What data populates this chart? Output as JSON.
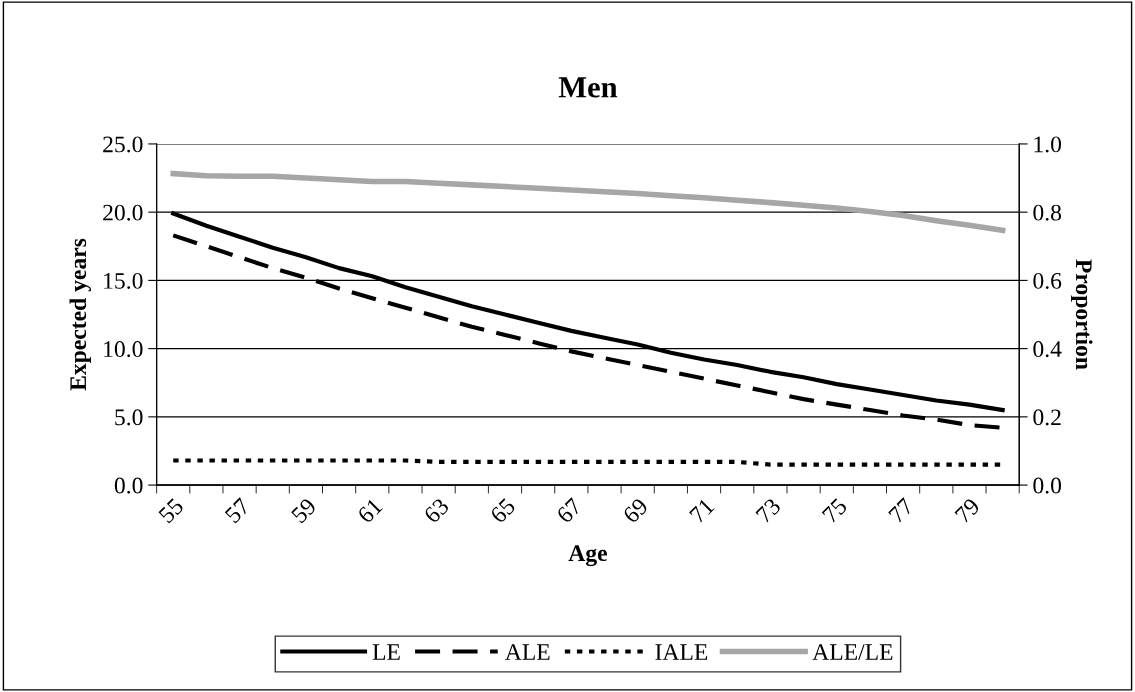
{
  "chart_data": {
    "type": "line",
    "title": "Men",
    "xlabel": "Age",
    "ylabel": "Expected years",
    "y2label": "Proportion",
    "categories": [
      "55",
      null,
      "57",
      null,
      "59",
      null,
      "61",
      null,
      "63",
      null,
      "65",
      null,
      "67",
      null,
      "69",
      null,
      "71",
      null,
      "73",
      null,
      "75",
      null,
      "77",
      null,
      "79",
      null
    ],
    "series": [
      {
        "name": "LE",
        "color": "#000000",
        "line_style": "solid",
        "values": [
          19.9,
          19.0,
          18.2,
          17.4,
          16.7,
          15.9,
          15.3,
          14.5,
          13.8,
          13.1,
          12.5,
          11.9,
          11.3,
          10.8,
          10.3,
          9.7,
          9.2,
          8.8,
          8.3,
          7.9,
          7.4,
          7.0,
          6.6,
          6.2,
          5.9,
          5.5
        ]
      },
      {
        "name": "ALE",
        "color": "#000000",
        "line_style": "dashed",
        "values": [
          18.3,
          17.5,
          16.7,
          15.9,
          15.2,
          14.4,
          13.7,
          13.0,
          12.3,
          11.6,
          11.0,
          10.4,
          9.8,
          9.3,
          8.8,
          8.3,
          7.8,
          7.3,
          6.8,
          6.3,
          5.9,
          5.5,
          5.1,
          4.8,
          4.4,
          4.2
        ]
      },
      {
        "name": "IALE",
        "color": "#000000",
        "line_style": "dotted",
        "values": [
          1.8,
          1.8,
          1.8,
          1.8,
          1.8,
          1.8,
          1.8,
          1.8,
          1.7,
          1.7,
          1.7,
          1.7,
          1.7,
          1.7,
          1.7,
          1.7,
          1.7,
          1.7,
          1.5,
          1.5,
          1.5,
          1.5,
          1.5,
          1.5,
          1.5,
          1.5
        ]
      },
      {
        "name": "ALE/LE",
        "color": "#a6a6a6",
        "line_style": "solid",
        "axis": "y2",
        "values": [
          0.913,
          0.907,
          0.905,
          0.905,
          0.9,
          0.895,
          0.89,
          0.89,
          0.885,
          0.88,
          0.875,
          0.87,
          0.865,
          0.86,
          0.855,
          0.848,
          0.842,
          0.835,
          0.828,
          0.82,
          0.812,
          0.802,
          0.79,
          0.775,
          0.762,
          0.747
        ]
      }
    ],
    "ylim": [
      0,
      25
    ],
    "yticks": [
      {
        "value": 0,
        "label": "0.0"
      },
      {
        "value": 5,
        "label": "5.0"
      },
      {
        "value": 10,
        "label": "10.0"
      },
      {
        "value": 15,
        "label": "15.0"
      },
      {
        "value": 20,
        "label": "20.0"
      },
      {
        "value": 25,
        "label": "25.0"
      }
    ],
    "y2lim": [
      0,
      1
    ],
    "y2ticks": [
      {
        "value": 0,
        "label": "0.0"
      },
      {
        "value": 0.2,
        "label": "0.2"
      },
      {
        "value": 0.4,
        "label": "0.4"
      },
      {
        "value": 0.6,
        "label": "0.6"
      },
      {
        "value": 0.8,
        "label": "0.8"
      },
      {
        "value": 1,
        "label": "1.0"
      }
    ],
    "grid": "y",
    "legend": "bottom",
    "marker": "none"
  }
}
